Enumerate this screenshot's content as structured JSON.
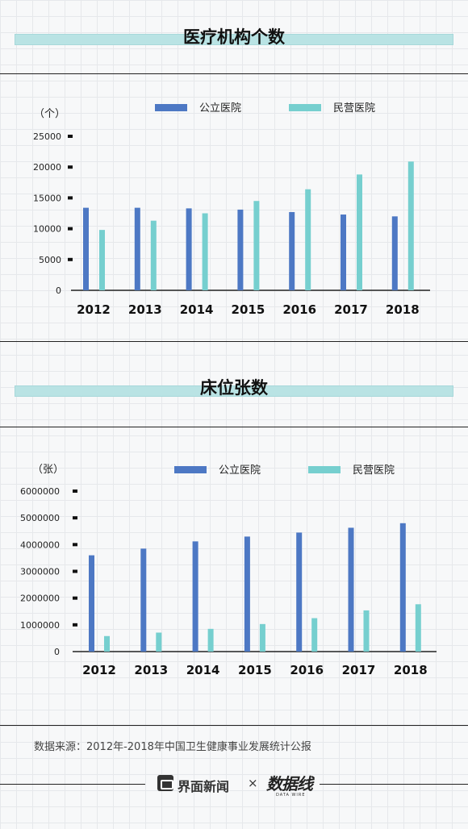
{
  "charts": [
    {
      "title": "医疗机构个数",
      "unit": "（个）",
      "legend": [
        "公立医院",
        "民营医院"
      ]
    },
    {
      "title": "床位张数",
      "unit": "（张）",
      "legend": [
        "公立医院",
        "民营医院"
      ]
    }
  ],
  "colors": {
    "public": "#4d78c4",
    "private": "#76cfcf"
  },
  "source": "数据来源：2012年-2018年中国卫生健康事业发展统计公报",
  "footer": {
    "brand": "界面新闻",
    "times": "×",
    "partner": "数据线",
    "partner_sub": "DATA WIRE"
  },
  "chart_data": [
    {
      "type": "bar",
      "title": "医疗机构个数",
      "ylabel": "（个）",
      "categories": [
        "2012",
        "2013",
        "2014",
        "2015",
        "2016",
        "2017",
        "2018"
      ],
      "series": [
        {
          "name": "公立医院",
          "values": [
            13400,
            13400,
            13300,
            13100,
            12700,
            12300,
            12000
          ]
        },
        {
          "name": "民营医院",
          "values": [
            9800,
            11300,
            12500,
            14500,
            16400,
            18800,
            20900
          ]
        }
      ],
      "yticks": [
        "25000",
        "20000",
        "15000",
        "10000",
        "5000",
        "0"
      ],
      "ylim": [
        0,
        25000
      ],
      "legend_position": "top"
    },
    {
      "type": "bar",
      "title": "床位张数",
      "ylabel": "（张）",
      "categories": [
        "2012",
        "2013",
        "2014",
        "2015",
        "2016",
        "2017",
        "2018"
      ],
      "series": [
        {
          "name": "公立医院",
          "values": [
            3600000,
            3850000,
            4120000,
            4300000,
            4450000,
            4630000,
            4800000
          ]
        },
        {
          "name": "民营医院",
          "values": [
            580000,
            710000,
            850000,
            1030000,
            1250000,
            1540000,
            1770000
          ]
        }
      ],
      "yticks": [
        "6000000",
        "5000000",
        "4000000",
        "3000000",
        "2000000",
        "1000000",
        "0"
      ],
      "ylim": [
        0,
        6000000
      ],
      "legend_position": "top"
    }
  ]
}
